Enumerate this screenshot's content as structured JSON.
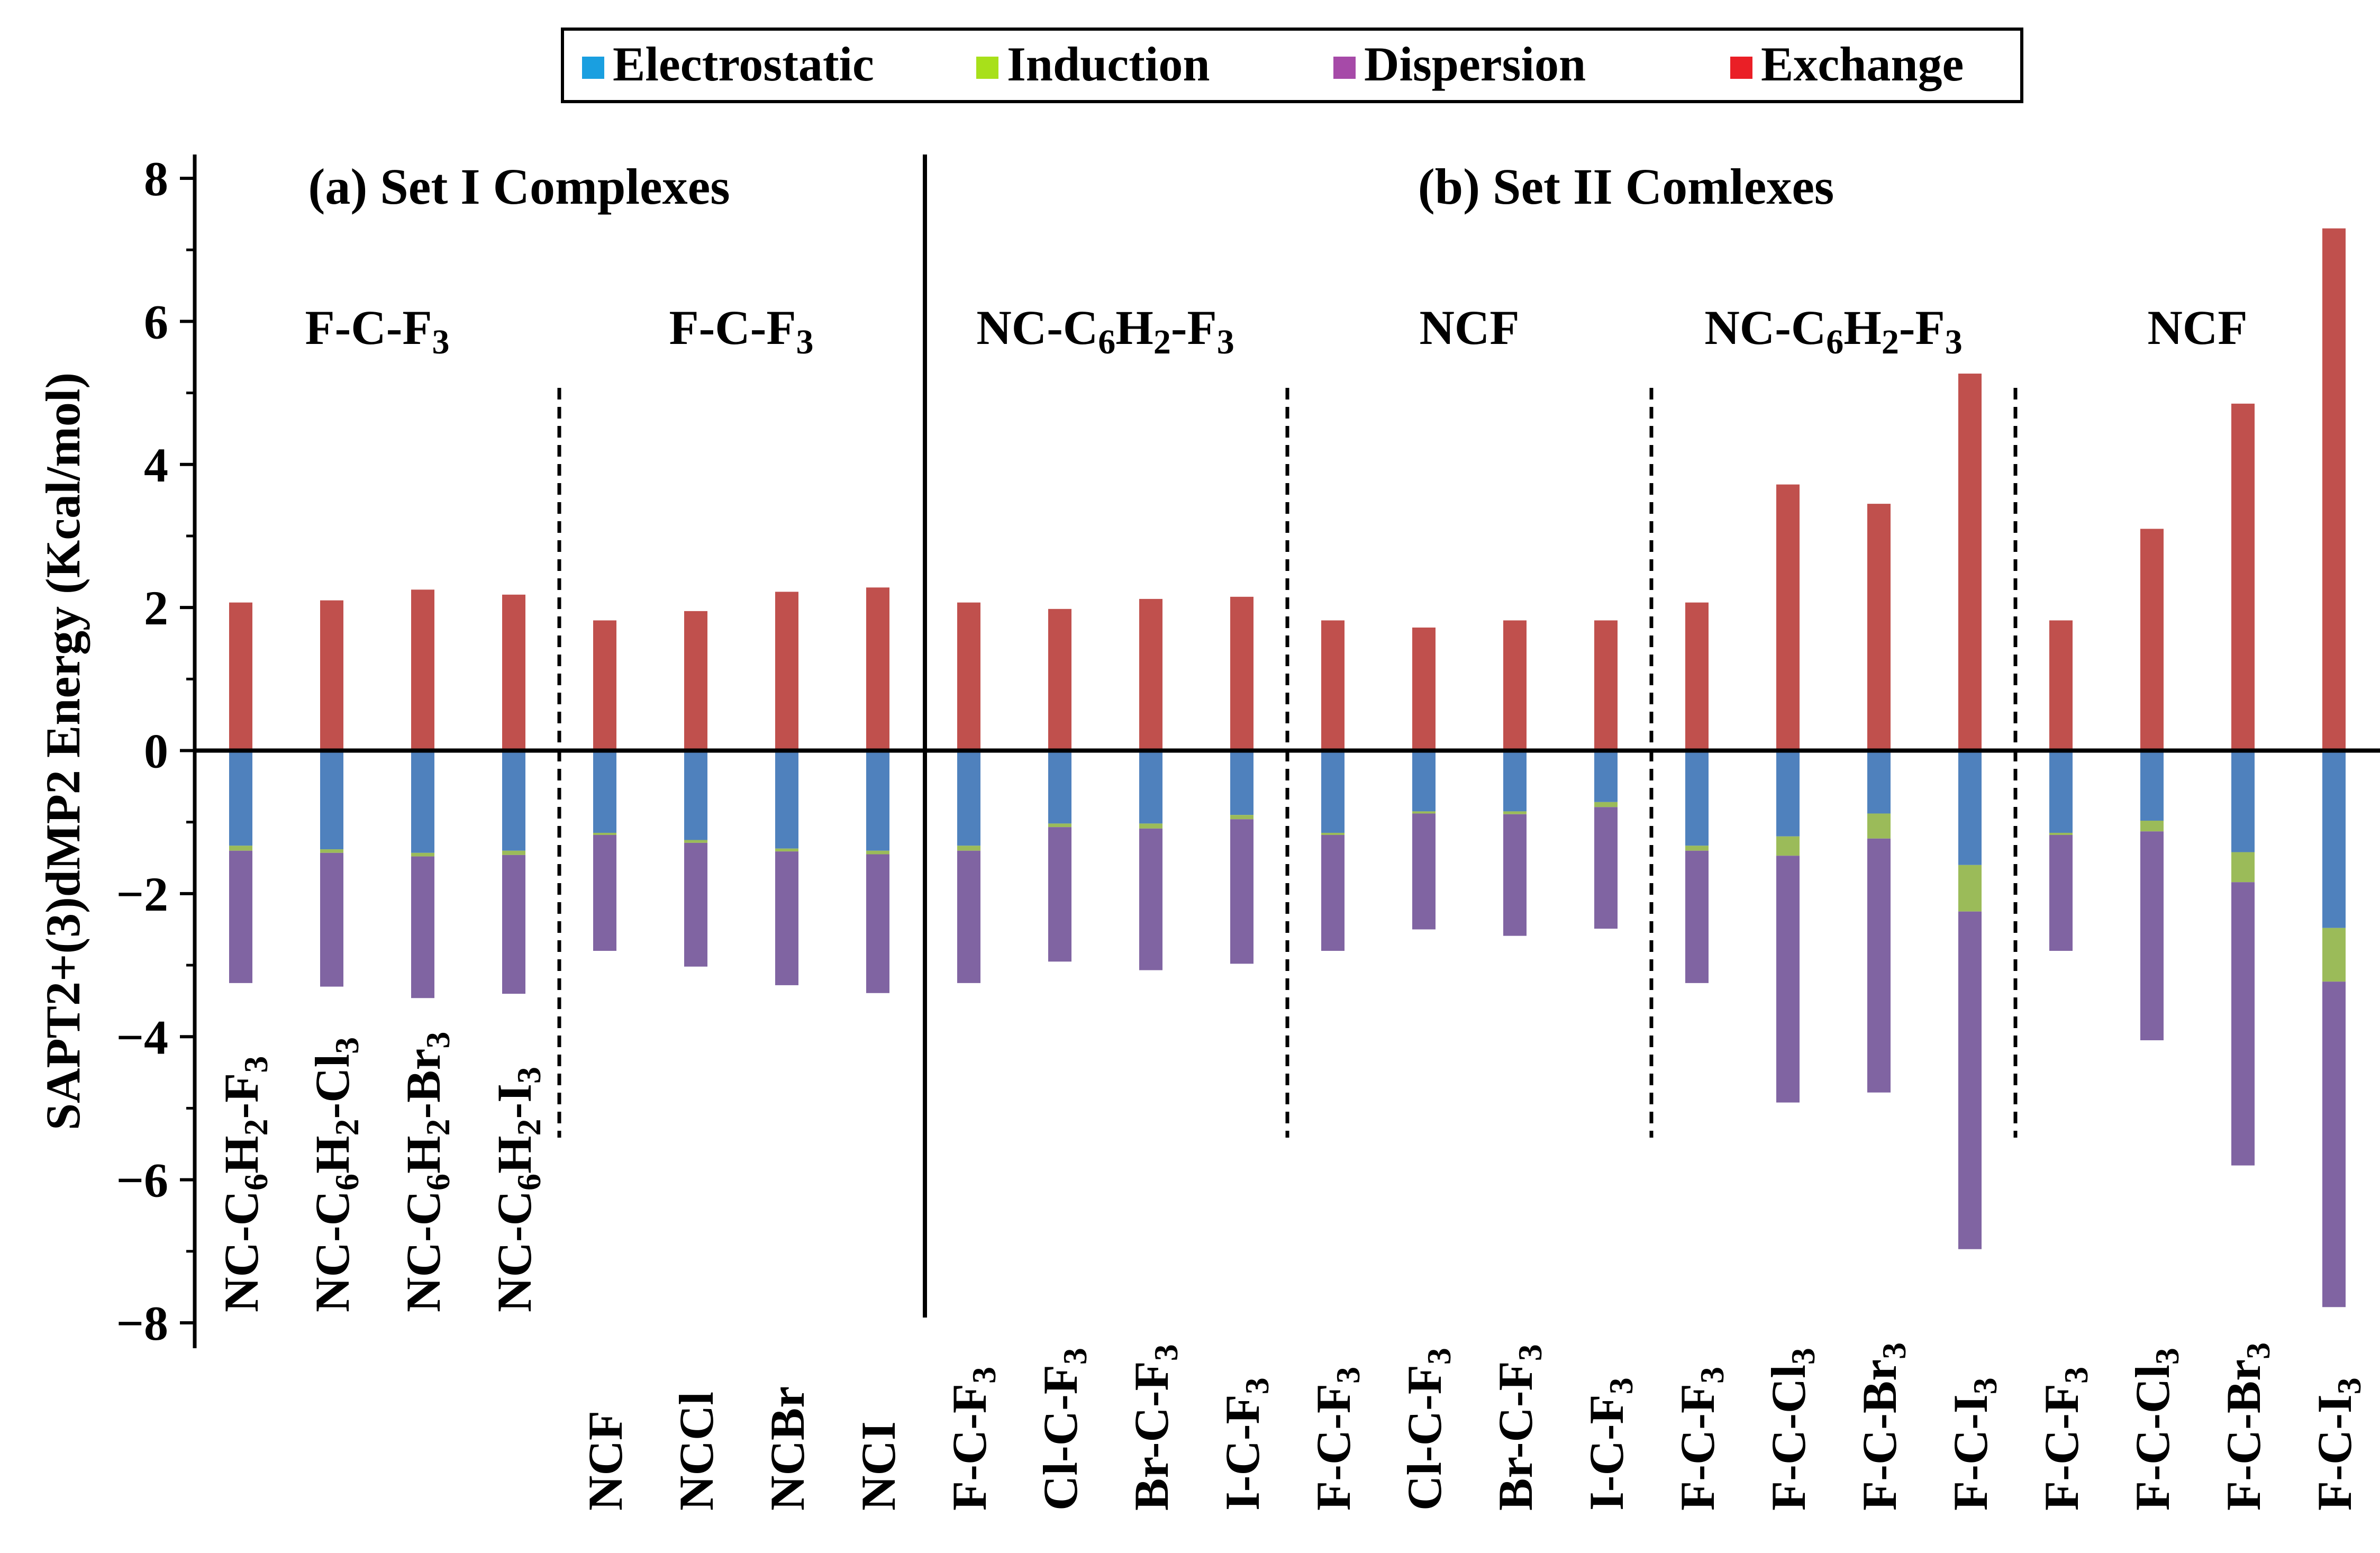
{
  "chart_data": {
    "type": "bar",
    "stacked": true,
    "ylabel": "SAPT2+(3)dMP2 Energy (Kcal/mol)",
    "ylim": [
      -8,
      8
    ],
    "yticks": [
      8,
      6,
      4,
      2,
      0,
      -2,
      -4,
      -6,
      -8
    ],
    "ytick_labels": [
      "8",
      "6",
      "4",
      "2",
      "0",
      "−2",
      "−4",
      "−6",
      "−8"
    ],
    "legend": {
      "position": "top-center",
      "items": [
        {
          "name": "Electrostatic",
          "color": "#1a9fe0"
        },
        {
          "name": "Induction",
          "color": "#a8e01a"
        },
        {
          "name": "Dispersion",
          "color": "#a64aa8"
        },
        {
          "name": "Exchange",
          "color": "#ea1f26"
        }
      ]
    },
    "series_colors": {
      "exchange": "#c0504d",
      "electrostatic": "#4f81bd",
      "induction": "#9bbb59",
      "dispersion": "#8064a2"
    },
    "panels": [
      {
        "name": "(a) Set I Complexes",
        "first_category": 0,
        "last_category": 7
      },
      {
        "name": "(b) Set II Comlexes",
        "first_category": 8,
        "last_category": 23
      }
    ],
    "groups": [
      {
        "label_main": "F-C-F",
        "label_sub": "3",
        "first": 0,
        "last": 3
      },
      {
        "label_main": "F-C-F",
        "label_sub": "3",
        "first": 4,
        "last": 7
      },
      {
        "label_main": "NC-C",
        "label_sub": "6",
        "label_mid": "H",
        "label_sub2": "2",
        "label_end": "-F",
        "label_sub3": "3",
        "first": 8,
        "last": 11
      },
      {
        "label_main": "NCF",
        "first": 12,
        "last": 15
      },
      {
        "label_main": "NC-C",
        "label_sub": "6",
        "label_mid": "H",
        "label_sub2": "2",
        "label_end": "-F",
        "label_sub3": "3",
        "first": 16,
        "last": 19
      },
      {
        "label_main": "NCF",
        "first": 20,
        "last": 23
      }
    ],
    "categories": [
      {
        "parts": [
          "NC-C",
          "6",
          "H",
          "2",
          "-F",
          "3"
        ]
      },
      {
        "parts": [
          "NC-C",
          "6",
          "H",
          "2",
          "-Cl",
          "3"
        ]
      },
      {
        "parts": [
          "NC-C",
          "6",
          "H",
          "2",
          "-Br",
          "3"
        ]
      },
      {
        "parts": [
          "NC-C",
          "6",
          "H",
          "2",
          "-I",
          "3"
        ]
      },
      {
        "parts": [
          "NCF"
        ]
      },
      {
        "parts": [
          "NCCl"
        ]
      },
      {
        "parts": [
          "NCBr"
        ]
      },
      {
        "parts": [
          "NCI"
        ]
      },
      {
        "parts": [
          "F-C-F",
          "3"
        ]
      },
      {
        "parts": [
          "Cl-C-F",
          "3"
        ]
      },
      {
        "parts": [
          "Br-C-F",
          "3"
        ]
      },
      {
        "parts": [
          "I-C-F",
          "3"
        ]
      },
      {
        "parts": [
          "F-C-F",
          "3"
        ]
      },
      {
        "parts": [
          "Cl-C-F",
          "3"
        ]
      },
      {
        "parts": [
          "Br-C-F",
          "3"
        ]
      },
      {
        "parts": [
          "I-C-F",
          "3"
        ]
      },
      {
        "parts": [
          "F-C-F",
          "3"
        ]
      },
      {
        "parts": [
          "F-C-Cl",
          "3"
        ]
      },
      {
        "parts": [
          "F-C-Br",
          "3"
        ]
      },
      {
        "parts": [
          "F-C-I",
          "3"
        ]
      },
      {
        "parts": [
          "F-C-F",
          "3"
        ]
      },
      {
        "parts": [
          "F-C-Cl",
          "3"
        ]
      },
      {
        "parts": [
          "F-C-Br",
          "3"
        ]
      },
      {
        "parts": [
          "F-C-I",
          "3"
        ]
      }
    ],
    "series": [
      {
        "name": "Exchange",
        "key": "exchange",
        "values": [
          2.07,
          2.1,
          2.25,
          2.18,
          1.82,
          1.95,
          2.22,
          2.28,
          2.07,
          1.98,
          2.12,
          2.15,
          1.82,
          1.72,
          1.82,
          1.82,
          2.07,
          3.72,
          3.45,
          5.27,
          1.82,
          3.1,
          4.85,
          7.3
        ]
      },
      {
        "name": "Electrostatic",
        "key": "electrostatic",
        "values": [
          -1.33,
          -1.38,
          -1.43,
          -1.4,
          -1.15,
          -1.25,
          -1.37,
          -1.4,
          -1.33,
          -1.02,
          -1.02,
          -0.9,
          -1.15,
          -0.85,
          -0.85,
          -0.72,
          -1.33,
          -1.2,
          -0.88,
          -1.6,
          -1.15,
          -0.98,
          -1.42,
          -2.48
        ]
      },
      {
        "name": "Induction",
        "key": "induction",
        "values": [
          -0.07,
          -0.05,
          -0.05,
          -0.06,
          -0.03,
          -0.04,
          -0.04,
          -0.05,
          -0.07,
          -0.05,
          -0.07,
          -0.06,
          -0.03,
          -0.03,
          -0.04,
          -0.07,
          -0.07,
          -0.27,
          -0.35,
          -0.65,
          -0.03,
          -0.15,
          -0.42,
          -0.75
        ]
      },
      {
        "name": "Dispersion",
        "key": "dispersion",
        "values": [
          -1.85,
          -1.87,
          -1.98,
          -1.94,
          -1.62,
          -1.73,
          -1.87,
          -1.94,
          -1.85,
          -1.88,
          -1.98,
          -2.02,
          -1.62,
          -1.62,
          -1.7,
          -1.7,
          -1.85,
          -3.45,
          -3.55,
          -4.72,
          -1.62,
          -2.92,
          -3.96,
          -4.55
        ]
      }
    ]
  }
}
